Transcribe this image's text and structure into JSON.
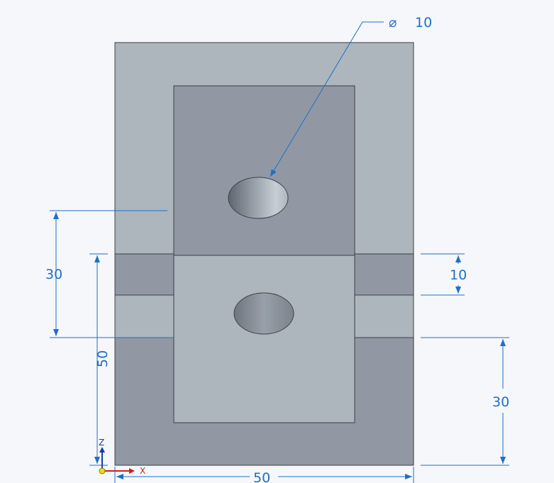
{
  "drawing": {
    "colors": {
      "background": "#f5f7fa",
      "light_face": "#adb6bd",
      "dark_face": "#9198a3",
      "edge": "#3a3f46",
      "dimension": "#1f6fc9"
    },
    "callout": {
      "symbol": "⌀",
      "value": "10"
    },
    "dimensions": {
      "left_outer": "30",
      "left_vertical": "50",
      "right_upper": "10",
      "right_lower": "30",
      "bottom": "50"
    },
    "axes": {
      "z_label": "Z",
      "x_label": "X"
    }
  }
}
